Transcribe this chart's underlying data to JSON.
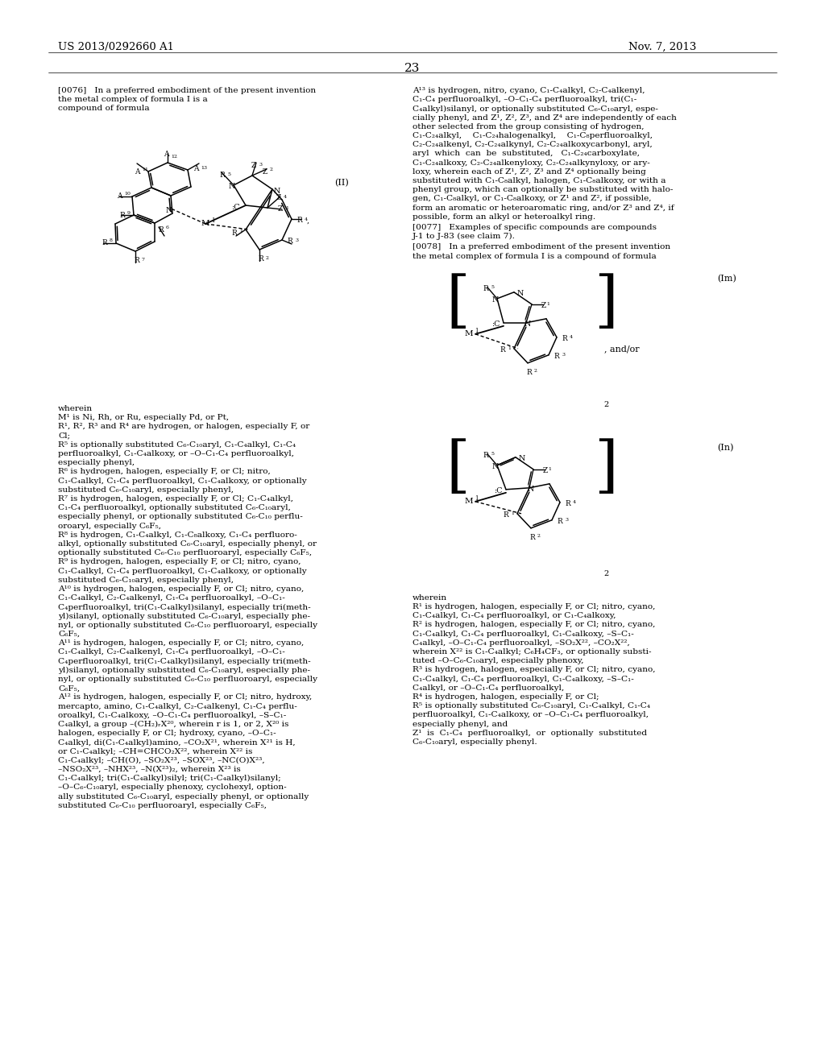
{
  "page_header_left": "US 2013/0292660 A1",
  "page_header_right": "Nov. 7, 2013",
  "page_number": "23",
  "bg": "#ffffff",
  "fg": "#000000"
}
